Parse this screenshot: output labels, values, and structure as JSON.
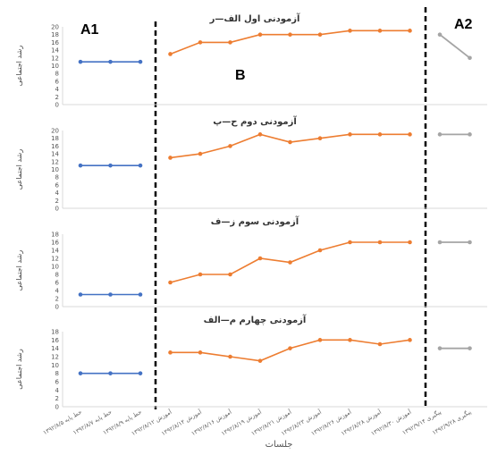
{
  "chart_data": {
    "type": "line",
    "xlabel": "جلسات",
    "phase_labels": [
      "A1",
      "B",
      "A2"
    ],
    "colors": {
      "baseline": "#4472C4",
      "treatment": "#ED7D31",
      "followup": "#A5A5A5",
      "phase_line": "#000000",
      "axis": "#d9d9d9"
    },
    "panels": [
      {
        "title": "آزمودنی اول الف—ر",
        "ylabel": "رشد اجتماعی",
        "ylim": [
          0,
          20
        ],
        "yticks": [
          0,
          2,
          4,
          6,
          8,
          10,
          12,
          14,
          16,
          18,
          20
        ],
        "baseline": [
          11,
          11,
          11
        ],
        "treatment": [
          13,
          16,
          16,
          18,
          18,
          18,
          19,
          19,
          19
        ],
        "followup": [
          18,
          12
        ]
      },
      {
        "title": "آزمودنی دوم ح—پ",
        "ylabel": "رشد اجتماعی",
        "ylim": [
          0,
          20
        ],
        "yticks": [
          0,
          2,
          4,
          6,
          8,
          10,
          12,
          14,
          16,
          18,
          20
        ],
        "baseline": [
          11,
          11,
          11
        ],
        "treatment": [
          13,
          14,
          16,
          19,
          17,
          18,
          19,
          19,
          19
        ],
        "followup": [
          19,
          19
        ]
      },
      {
        "title": "آزمودنی سوم ز—ف",
        "ylabel": "رشد اجتماعی",
        "ylim": [
          0,
          18
        ],
        "yticks": [
          0,
          2,
          4,
          6,
          8,
          10,
          12,
          14,
          16,
          18
        ],
        "baseline": [
          3,
          3,
          3
        ],
        "treatment": [
          6,
          8,
          8,
          12,
          11,
          14,
          16,
          16,
          16
        ],
        "followup": [
          16,
          16
        ]
      },
      {
        "title": "آزمودنی چهارم م—الف",
        "ylabel": "رشد اجتماعی",
        "ylim": [
          0,
          18
        ],
        "yticks": [
          0,
          2,
          4,
          6,
          8,
          10,
          12,
          14,
          16,
          18
        ],
        "baseline": [
          8,
          8,
          8
        ],
        "treatment": [
          13,
          13,
          12,
          11,
          14,
          16,
          16,
          15,
          16
        ],
        "followup": [
          14,
          14
        ]
      }
    ],
    "categories": [
      "خط پایه ۱۳۹۲/۸/۵",
      "خط پایه ۱۳۹۲/۸/۷",
      "خط پایه ۱۳۹۲/۸/۹",
      "آموزش ۱۳۹۲/۸/۱۲",
      "آموزش ۱۳۹۲/۸/۱۴",
      "آموزش ۱۳۹۲/۸/۱۶",
      "آموزش ۱۳۹۲/۸/۱۹",
      "آموزش ۱۳۹۲/۸/۲۱",
      "آموزش ۱۳۹۲/۸/۲۳",
      "آموزش ۱۳۹۲/۸/۲۶",
      "آموزش ۱۳۹۲/۸/۲۸",
      "آموزش ۱۳۹۲/۸/۳۰",
      "پیگیری ۱۳۹۲/۹/۱۴",
      "پیگیری ۱۳۹۲/۹/۲۸"
    ]
  }
}
